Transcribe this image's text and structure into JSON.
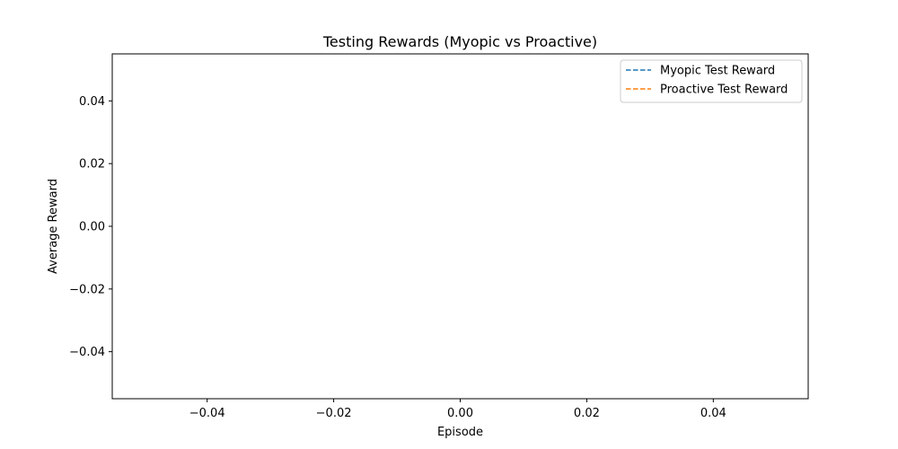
{
  "chart_data": {
    "type": "line",
    "title": "Testing Rewards (Myopic vs Proactive)",
    "xlabel": "Episode",
    "ylabel": "Average Reward",
    "xlim": [
      -0.055,
      0.055
    ],
    "ylim": [
      -0.055,
      0.055
    ],
    "x_ticks": [
      -0.04,
      -0.02,
      0.0,
      0.02,
      0.04
    ],
    "x_tick_labels": [
      "−0.04",
      "−0.02",
      "0.00",
      "0.02",
      "0.04"
    ],
    "y_ticks": [
      0.04,
      0.02,
      0.0,
      -0.02,
      -0.04
    ],
    "y_tick_labels": [
      "0.04",
      "0.02",
      "0.00",
      "−0.02",
      "−0.04"
    ],
    "grid": false,
    "legend_position": "top-right",
    "series": [
      {
        "name": "Myopic Test Reward",
        "color": "#1f77b4",
        "line_style": "dashed",
        "x": [],
        "y": []
      },
      {
        "name": "Proactive Test Reward",
        "color": "#ff7f0e",
        "line_style": "dashed",
        "x": [],
        "y": []
      }
    ]
  }
}
